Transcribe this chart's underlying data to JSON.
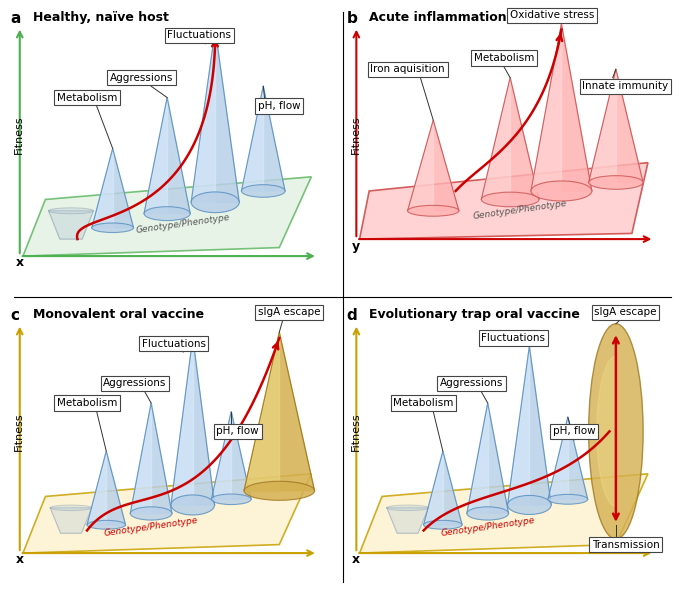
{
  "panels": {
    "a": {
      "title": "Healthy, naïve host",
      "label": "a",
      "axis_label": "x",
      "plane_color": "#dff0df",
      "plane_edge_color": "#4caf50",
      "axis_color": "#4caf50",
      "cone_face": "#b8d0e8",
      "cone_edge": "#5a90c0",
      "cone_highlight": "#dceeff",
      "labels": [
        "Metabolism",
        "Aggressions",
        "Fluctuations",
        "pH, flow"
      ],
      "genotype_label": "Genotype/Phenotype",
      "genotype_color": "#555555"
    },
    "b": {
      "title": "Acute inflammation",
      "label": "b",
      "axis_label": "y",
      "plane_color": "#ffcccc",
      "plane_edge_color": "#cc4444",
      "axis_color": "#cc0000",
      "cone_face": "#ffb3b3",
      "cone_edge": "#cc5555",
      "cone_highlight": "#ffdddd",
      "labels": [
        "Iron aquisition",
        "Metabolism",
        "Oxidative stress",
        "Innate immunity"
      ],
      "genotype_label": "Genotype/Phenotype",
      "genotype_color": "#555555"
    },
    "c": {
      "title": "Monovalent oral vaccine",
      "label": "c",
      "axis_label": "x",
      "plane_color": "#fdf3d0",
      "plane_edge_color": "#c8a000",
      "axis_color": "#c8a000",
      "cone_face": "#b8d0e8",
      "cone_edge": "#5a90c0",
      "cone_highlight": "#dceeff",
      "gold_face": "#d4b050",
      "gold_edge": "#a07820",
      "gold_highlight": "#eedd88",
      "labels": [
        "Metabolism",
        "Aggressions",
        "Fluctuations",
        "pH, flow",
        "sIgA escape"
      ],
      "genotype_label": "Genotype/Phenotype",
      "genotype_color": "#cc0000"
    },
    "d": {
      "title": "Evolutionary trap oral vaccine",
      "label": "d",
      "axis_label": "x",
      "plane_color": "#fdf3d0",
      "plane_edge_color": "#c8a000",
      "axis_color": "#c8a000",
      "cone_face": "#b8d0e8",
      "cone_edge": "#5a90c0",
      "cone_highlight": "#dceeff",
      "gold_face": "#d4b050",
      "gold_edge": "#a07820",
      "gold_highlight": "#eedd88",
      "labels": [
        "Metabolism",
        "Aggressions",
        "Fluctuations",
        "pH, flow",
        "sIgA escape",
        "Transmission"
      ],
      "genotype_label": "Genotype/Phenotype",
      "genotype_color": "#cc0000"
    }
  }
}
